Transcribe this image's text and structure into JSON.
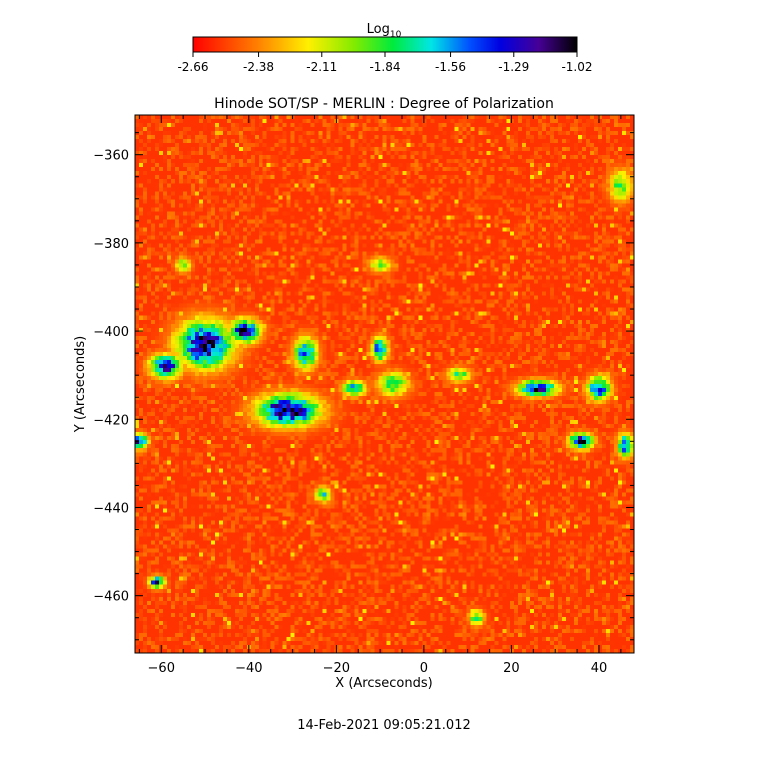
{
  "colorbar": {
    "label_main": "Log",
    "label_sub": "10",
    "ticks": [
      "-2.66",
      "-2.38",
      "-2.11",
      "-1.84",
      "-1.56",
      "-1.29",
      "-1.02"
    ],
    "range": [
      -2.66,
      -1.02
    ],
    "colormap": "rainbow (red low to black high)"
  },
  "footer": {
    "timestamp": "14-Feb-2021 09:05:21.012"
  },
  "chart_data": {
    "type": "heatmap",
    "title": "Hinode SOT/SP - MERLIN : Degree of Polarization",
    "xlabel": "X (Arcseconds)",
    "ylabel": "Y (Arcseconds)",
    "xlim": [
      -66,
      48
    ],
    "ylim": [
      -473,
      -351
    ],
    "x_ticks": [
      -60,
      -40,
      -20,
      0,
      20,
      40
    ],
    "y_ticks": [
      -360,
      -380,
      -400,
      -420,
      -440,
      -460
    ],
    "x_tick_labels": [
      "−60",
      "−40",
      "−20",
      "0",
      "20",
      "40"
    ],
    "y_tick_labels": [
      "−360",
      "−380",
      "−400",
      "−420",
      "−440",
      "−460"
    ],
    "value_scale": "log10",
    "value_range": [
      -2.66,
      -1.02
    ],
    "background_level": -2.55,
    "features": [
      {
        "x": -50,
        "y": -403,
        "rx": 7,
        "ry": 6,
        "peak": -1.1
      },
      {
        "x": -59,
        "y": -408,
        "rx": 4,
        "ry": 3,
        "peak": -1.25
      },
      {
        "x": -41,
        "y": -400,
        "rx": 4,
        "ry": 3,
        "peak": -1.2
      },
      {
        "x": -31,
        "y": -418,
        "rx": 8,
        "ry": 4,
        "peak": -1.08
      },
      {
        "x": -27,
        "y": -405,
        "rx": 3,
        "ry": 4,
        "peak": -1.45
      },
      {
        "x": -10,
        "y": -404,
        "rx": 2,
        "ry": 3,
        "peak": -1.35
      },
      {
        "x": -16,
        "y": -413,
        "rx": 3,
        "ry": 2,
        "peak": -1.55
      },
      {
        "x": 26,
        "y": -413,
        "rx": 5,
        "ry": 2,
        "peak": -1.2
      },
      {
        "x": 36,
        "y": -425,
        "rx": 3,
        "ry": 2,
        "peak": -1.12
      },
      {
        "x": 40,
        "y": -413,
        "rx": 3,
        "ry": 3,
        "peak": -1.35
      },
      {
        "x": -65,
        "y": -425,
        "rx": 2,
        "ry": 2,
        "peak": -1.22
      },
      {
        "x": -61,
        "y": -457,
        "rx": 2,
        "ry": 1.5,
        "peak": -1.3
      },
      {
        "x": -10,
        "y": -385,
        "rx": 3,
        "ry": 2,
        "peak": -1.95
      },
      {
        "x": 45,
        "y": -367,
        "rx": 3,
        "ry": 4,
        "peak": -1.85
      },
      {
        "x": -23,
        "y": -437,
        "rx": 2,
        "ry": 2,
        "peak": -1.7
      },
      {
        "x": -7,
        "y": -412,
        "rx": 4,
        "ry": 3,
        "peak": -1.75
      },
      {
        "x": 8,
        "y": -410,
        "rx": 3,
        "ry": 2,
        "peak": -1.8
      },
      {
        "x": 46,
        "y": -426,
        "rx": 2,
        "ry": 3,
        "peak": -1.4
      },
      {
        "x": 12,
        "y": -465,
        "rx": 2,
        "ry": 2,
        "peak": -1.8
      },
      {
        "x": -55,
        "y": -385,
        "rx": 2,
        "ry": 2,
        "peak": -1.9
      }
    ]
  }
}
